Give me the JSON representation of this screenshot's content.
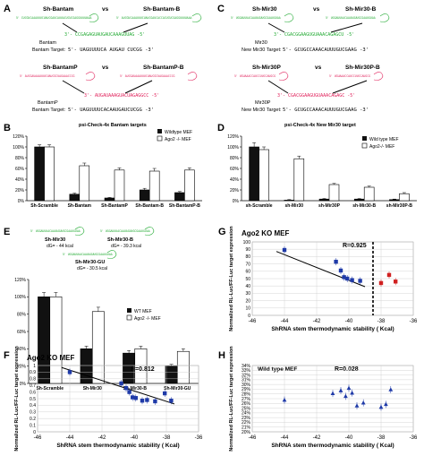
{
  "panels": {
    "A": {
      "letter": "A",
      "pair1": {
        "left": "Sh-Bantam",
        "vs": "vs",
        "right": "Sh-Bantam-B",
        "hp_left": "5' CUCGUCAAAUUUCUAUCGAUCAUUACUCUCGAGGUUUUAAA",
        "hp_right": "5' AUCGUCAAAUUUCUAUCGAUCACCACUCUCGAGGUUUUAAA",
        "guide": "3'- CCGAGAGUAUGAUCAAAGUUAG -5'",
        "target_name": "Bantam",
        "target_label": "Bantam Target:",
        "target_seq": "5'- UAGUUUUCA  AUGAU CUCGG -3'"
      },
      "pair2": {
        "left": "Sh-BantamP",
        "vs": "vs",
        "right": "Sh-BantamP-B",
        "hp_left": "5' AUCGAUAAAUUUCUAUCGCUAGAAACCCG",
        "hp_right": "5' AUCGAUAAAUUUCUAUCGCUAGAAACCCG",
        "guide": "3'- AUGAUAAAGUACUAGAGGCC -5'",
        "target_name": "BantamP",
        "target_label": "Bantam Target:",
        "target_seq": "5'- UAGUUUUCACAAUGAUCUCGG -3'"
      }
    },
    "B": {
      "letter": "B",
      "title": "psi-Check-4x Bantam targets",
      "legend": [
        "Wildtype MEF",
        "Ago2 -/- MEF"
      ],
      "categories": [
        "Sh-Scramble",
        "Sh-Bantam",
        "Sh-BantamP",
        "Sh-Bantam-B",
        "Sh-BantamP-B"
      ],
      "yticks": [
        "0%",
        "20%",
        "40%",
        "60%",
        "80%",
        "100%",
        "120%"
      ]
    },
    "C": {
      "letter": "C",
      "pair1": {
        "left": "Sh-Mir30",
        "vs": "vs",
        "right": "Sh-Mir30-B",
        "hp_left": "5' UGGAUUUACAAUAGUUGCGAAUGUAA",
        "hp_right": "5' UGGAUUUACAAUAGUUGCGAAUGUAA",
        "guide": "3'- CGACGGAAGUGUAAACAGAGCU -5'",
        "target_name": "Mir30",
        "target_label": "New Mir30 Target:",
        "target_seq": "5'- GCUGCCAAACAUUUGUCGAAG -3'"
      },
      "pair2": {
        "left": "Sh-Mir30P",
        "vs": "vs",
        "right": "Sh-Mir30P-B",
        "hp_left": "5' UGUAAACCAUCCUUCCAUGCG",
        "hp_right": "5' UGUAAACCAUCCUUCCAUGCG",
        "guide": "3'- CGACGGAAGUGUAAACAGAGC -5'",
        "target_name": "Mir30P",
        "target_label": "New Mir30 Target:",
        "target_seq": "5'- GCUGCCAAACAUUUGUCGAAG -3'"
      }
    },
    "D": {
      "letter": "D",
      "title": "psi-Check-4x New Mir30 target",
      "legend": [
        "Wild type MEF",
        "Ago2-/- MEF"
      ],
      "categories": [
        "sh-Scramble",
        "sh-Mir30",
        "sh-Mir30P",
        "sh-Mir30-B",
        "sh-Mir30P-B"
      ],
      "yticks": [
        "0%",
        "20%",
        "40%",
        "60%",
        "80%",
        "100%",
        "120%"
      ]
    },
    "E": {
      "letter": "E",
      "hp1": "Sh-Mir30",
      "dg1": "dG= - 44 kcal",
      "hp2": "Sh-Mir30-B",
      "dg2": "dG= - 39.3 kcal",
      "hp3": "Sh-Mir30-GU",
      "dg3": "dG= - 30.5 kcal",
      "legend": [
        "WT MEF",
        "Ago2 -/- MEF"
      ],
      "categories": [
        "Sh-Scramble",
        "Sh-Mir30",
        "Sh-Mir30-B",
        "Sh-Mir30-GU"
      ],
      "yticks": [
        "0%",
        "20%",
        "40%",
        "60%",
        "80%",
        "100%",
        "120%"
      ]
    },
    "F": {
      "letter": "F",
      "title": "Ago2 KO MEF",
      "r": "R=0.812",
      "ylabel": "Normalized RL-Luc/FF-Luc target expression",
      "xlabel": "ShRNA stem thermodynamic stability ( Kcal)",
      "yticks": [
        "0",
        "0.1",
        "0.2",
        "0.3",
        "0.4",
        "0.5",
        "0.6",
        "0.7",
        "0.8",
        "0.9",
        "1"
      ],
      "xticks": [
        "-46",
        "-44",
        "-42",
        "-40",
        "-38",
        "-36"
      ]
    },
    "G": {
      "letter": "G",
      "title": "Ago2 KO MEF",
      "r": "R=0.925",
      "ylabel": "Normalized RL-Luc/FF-Luc target expression",
      "xlabel": "ShRNA stem thermodynamic stability ( Kcal)",
      "yticks": [
        "0",
        "10",
        "20",
        "30",
        "40",
        "50",
        "60",
        "70",
        "80",
        "90",
        "100"
      ],
      "xticks": [
        "-46",
        "-44",
        "-42",
        "-40",
        "-38",
        "-36"
      ]
    },
    "H": {
      "letter": "H",
      "title": "Wild type MEF",
      "r": "R=0.028",
      "ylabel": "Normalized RL-Luc/FF-Luc target expression",
      "xlabel": "ShRNA stem thermodynamic stability ( Kcal)",
      "yticks": [
        "20%",
        "21%",
        "22%",
        "23%",
        "24%",
        "25%",
        "26%",
        "27%",
        "28%",
        "29%",
        "30%",
        "31%",
        "32%",
        "33%",
        "34%"
      ],
      "xticks": [
        "-46",
        "-44",
        "-42",
        "-40",
        "-38",
        "-36"
      ]
    }
  },
  "colors": {
    "black_bar": "#111111",
    "white_bar": "#ffffff",
    "blue": "#1f3aa8",
    "red": "#d02020",
    "green": "#22aa33",
    "pink": "#e0205a"
  },
  "chart_data": [
    {
      "panel": "B",
      "type": "bar",
      "title": "psi-Check-4x Bantam targets",
      "categories": [
        "Sh-Scramble",
        "Sh-Bantam",
        "Sh-BantamP",
        "Sh-Bantam-B",
        "Sh-BantamP-B"
      ],
      "series": [
        {
          "name": "Wildtype MEF",
          "values": [
            100,
            12,
            5,
            20,
            15
          ],
          "errors": [
            4,
            2,
            1,
            3,
            2
          ]
        },
        {
          "name": "Ago2 -/- MEF",
          "values": [
            100,
            65,
            57,
            55,
            57
          ],
          "errors": [
            4,
            5,
            4,
            5,
            4
          ]
        }
      ],
      "ylim": [
        0,
        120
      ],
      "legend": "top-right"
    },
    {
      "panel": "D",
      "type": "bar",
      "title": "psi-Check-4x New Mir30 target",
      "categories": [
        "sh-Scramble",
        "sh-Mir30",
        "sh-Mir30P",
        "sh-Mir30-B",
        "sh-Mir30P-B"
      ],
      "series": [
        {
          "name": "Wild type MEF",
          "values": [
            100,
            1,
            3,
            3,
            2
          ],
          "errors": [
            8,
            1,
            1,
            1,
            1
          ]
        },
        {
          "name": "Ago2-/- MEF",
          "values": [
            95,
            78,
            30,
            25,
            13
          ],
          "errors": [
            5,
            5,
            2,
            2,
            2
          ]
        }
      ],
      "ylim": [
        0,
        120
      ],
      "legend": "top-right"
    },
    {
      "panel": "E",
      "type": "bar",
      "categories": [
        "Sh-Scramble",
        "Sh-Mir30",
        "Sh-Mir30-B",
        "Sh-Mir30-GU"
      ],
      "series": [
        {
          "name": "WT MEF",
          "values": [
            100,
            40,
            35,
            20
          ],
          "errors": [
            5,
            3,
            3,
            2
          ]
        },
        {
          "name": "Ago2 -/- MEF",
          "values": [
            100,
            83,
            40,
            37
          ],
          "errors": [
            5,
            5,
            3,
            3
          ]
        }
      ],
      "ylim": [
        0,
        120
      ],
      "legend": "top-right"
    },
    {
      "panel": "F",
      "type": "scatter",
      "title": "Ago2 KO MEF",
      "xlim": [
        -46,
        -36
      ],
      "ylim": [
        0,
        1
      ],
      "grid": true,
      "points": [
        [
          -44,
          0.9
        ],
        [
          -40.8,
          0.73
        ],
        [
          -40.5,
          0.66
        ],
        [
          -40.3,
          0.6
        ],
        [
          -40.1,
          0.52
        ],
        [
          -39.9,
          0.51
        ],
        [
          -39.5,
          0.47
        ],
        [
          -39.2,
          0.48
        ],
        [
          -38.7,
          0.46
        ],
        [
          -38.1,
          0.58
        ],
        [
          -37.7,
          0.47
        ]
      ],
      "trend": [
        [
          -44.5,
          0.97
        ],
        [
          -37.5,
          0.42
        ]
      ]
    },
    {
      "panel": "G",
      "type": "scatter",
      "title": "Ago2 KO MEF",
      "xlim": [
        -46,
        -36
      ],
      "ylim": [
        0,
        100
      ],
      "grid": true,
      "series": [
        {
          "values": [
            [
              -44,
              89
            ],
            [
              -40.8,
              73
            ],
            [
              -40.5,
              61
            ],
            [
              -40.3,
              52
            ],
            [
              -40.1,
              50
            ],
            [
              -39.8,
              48
            ],
            [
              -39.3,
              47
            ]
          ]
        },
        {
          "values": [
            [
              -38,
              44
            ],
            [
              -37.5,
              55
            ],
            [
              -37.1,
              46
            ]
          ]
        }
      ],
      "trend": [
        [
          -44.5,
          87
        ],
        [
          -39,
          39
        ]
      ],
      "divider_x": -38.5
    },
    {
      "panel": "H",
      "type": "scatter",
      "title": "Wild type MEF",
      "xlim": [
        -46,
        -36
      ],
      "ylim": [
        20,
        34
      ],
      "grid": true,
      "points": [
        [
          -44,
          26.7
        ],
        [
          -41,
          28.1
        ],
        [
          -40.5,
          28.7
        ],
        [
          -40.2,
          27.5
        ],
        [
          -40,
          29.2
        ],
        [
          -39.8,
          28.2
        ],
        [
          -39.5,
          25.5
        ],
        [
          -39.1,
          26.1
        ],
        [
          -38,
          25.2
        ],
        [
          -37.7,
          25.8
        ],
        [
          -37.4,
          28.9
        ]
      ]
    }
  ]
}
